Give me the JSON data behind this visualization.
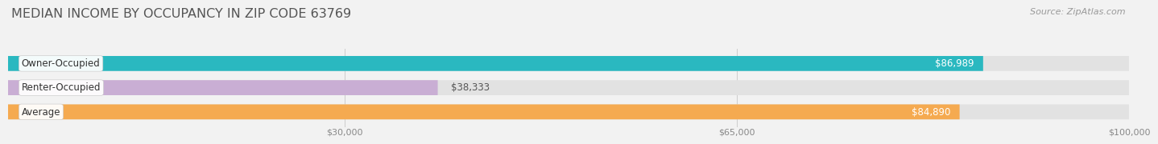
{
  "title": "MEDIAN INCOME BY OCCUPANCY IN ZIP CODE 63769",
  "source": "Source: ZipAtlas.com",
  "categories": [
    "Owner-Occupied",
    "Renter-Occupied",
    "Average"
  ],
  "values": [
    86989,
    38333,
    84890
  ],
  "bar_colors": [
    "#2ab8c0",
    "#c9aed4",
    "#f5aa50"
  ],
  "bar_labels": [
    "$86,989",
    "$38,333",
    "$84,890"
  ],
  "label_inside": [
    true,
    false,
    true
  ],
  "xlim": [
    0,
    100000
  ],
  "xticks": [
    30000,
    65000,
    100000
  ],
  "xtick_labels": [
    "$30,000",
    "$65,000",
    "$100,000"
  ],
  "background_color": "#f2f2f2",
  "bar_bg_color": "#e2e2e2",
  "bar_height": 0.62,
  "title_fontsize": 11.5,
  "source_fontsize": 8,
  "label_fontsize": 8.5,
  "category_fontsize": 8.5,
  "tick_fontsize": 8
}
